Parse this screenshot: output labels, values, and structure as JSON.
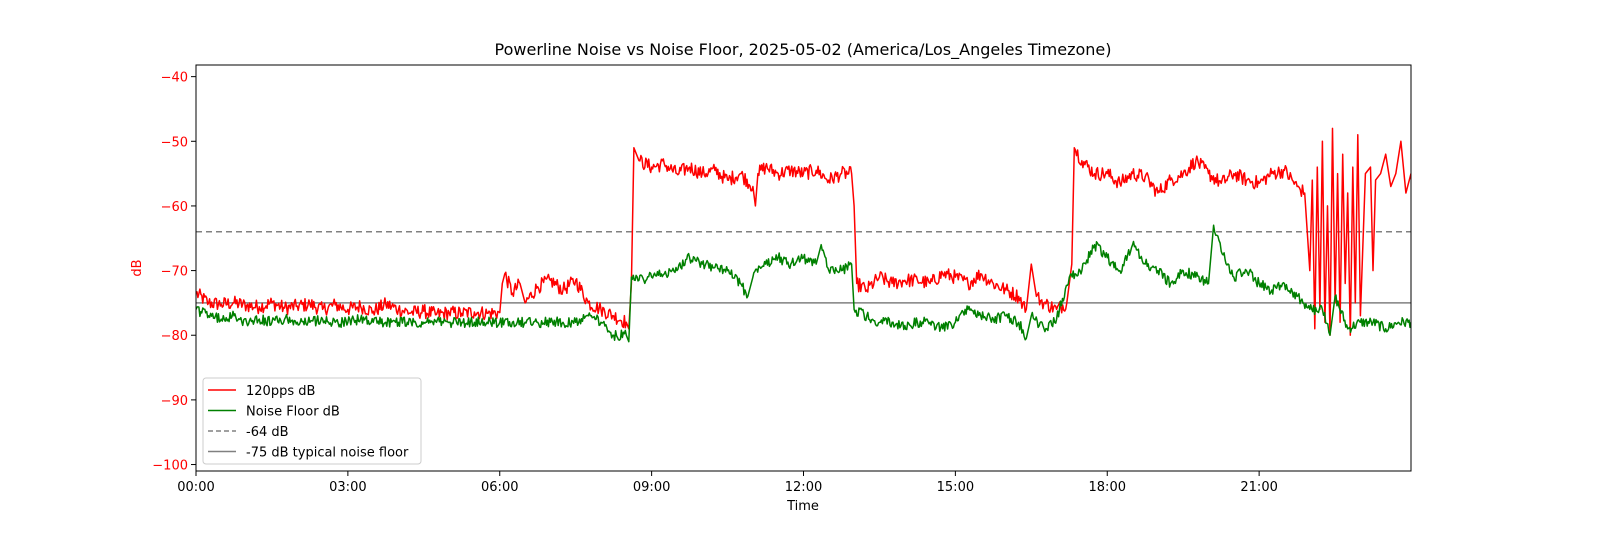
{
  "chart_data": {
    "type": "line",
    "title": "Powerline Noise vs Noise Floor, 2025-05-02 (America/Los_Angeles Timezone)",
    "xlabel": "Time",
    "ylabel": "dB",
    "x_unit": "hours of day",
    "xlim": [
      0,
      24
    ],
    "ylim": [
      -101,
      -38.2
    ],
    "x_ticks": [
      {
        "value": 0,
        "label": "00:00"
      },
      {
        "value": 3,
        "label": "03:00"
      },
      {
        "value": 6,
        "label": "06:00"
      },
      {
        "value": 9,
        "label": "09:00"
      },
      {
        "value": 12,
        "label": "12:00"
      },
      {
        "value": 15,
        "label": "15:00"
      },
      {
        "value": 18,
        "label": "18:00"
      },
      {
        "value": 21,
        "label": "21:00"
      }
    ],
    "y_ticks": [
      {
        "value": -40,
        "label": "−40"
      },
      {
        "value": -50,
        "label": "−50"
      },
      {
        "value": -60,
        "label": "−60"
      },
      {
        "value": -70,
        "label": "−70"
      },
      {
        "value": -80,
        "label": "−80"
      },
      {
        "value": -90,
        "label": "−90"
      },
      {
        "value": -100,
        "label": "−100"
      }
    ],
    "ylabel_color": "#ff0000",
    "grid": false,
    "legend_position": "lower-left",
    "series": [
      {
        "name": "120pps dB",
        "color": "#ff0000",
        "x": [
          0.0,
          0.25,
          0.5,
          0.75,
          1.0,
          1.25,
          1.5,
          1.75,
          2.0,
          2.25,
          2.5,
          2.75,
          3.0,
          3.25,
          3.5,
          3.75,
          4.0,
          4.25,
          4.5,
          4.75,
          5.0,
          5.25,
          5.5,
          5.75,
          6.0,
          6.05,
          6.1,
          6.25,
          6.4,
          6.5,
          6.75,
          7.0,
          7.25,
          7.5,
          7.75,
          8.0,
          8.25,
          8.5,
          8.55,
          8.6,
          8.65,
          8.75,
          9.0,
          9.25,
          9.5,
          9.75,
          10.0,
          10.25,
          10.5,
          10.75,
          11.0,
          11.05,
          11.1,
          11.25,
          11.5,
          11.75,
          12.0,
          12.25,
          12.5,
          12.75,
          12.95,
          13.0,
          13.05,
          13.25,
          13.5,
          13.75,
          14.0,
          14.25,
          14.5,
          14.75,
          15.0,
          15.25,
          15.5,
          15.75,
          16.0,
          16.25,
          16.4,
          16.5,
          16.6,
          16.75,
          17.0,
          17.2,
          17.3,
          17.35,
          17.5,
          17.75,
          18.0,
          18.25,
          18.5,
          18.75,
          19.0,
          19.25,
          19.5,
          19.75,
          20.0,
          20.25,
          20.5,
          20.75,
          21.0,
          21.25,
          21.5,
          21.75,
          21.9,
          22.0,
          22.05,
          22.1,
          22.15,
          22.2,
          22.25,
          22.3,
          22.35,
          22.4,
          22.45,
          22.5,
          22.55,
          22.6,
          22.65,
          22.7,
          22.75,
          22.8,
          22.85,
          22.9,
          22.95,
          23.0,
          23.1,
          23.2,
          23.25,
          23.3,
          23.4,
          23.5,
          23.6,
          23.7,
          23.8,
          23.9,
          24.0
        ],
        "y": [
          -73.5,
          -75.0,
          -75.2,
          -75.0,
          -75.4,
          -75.6,
          -75.0,
          -75.8,
          -75.5,
          -75.2,
          -76.0,
          -75.3,
          -76.0,
          -75.5,
          -76.3,
          -75.2,
          -76.0,
          -76.5,
          -76.3,
          -76.8,
          -76.5,
          -76.6,
          -76.4,
          -76.6,
          -76.5,
          -72.0,
          -70.5,
          -73.5,
          -72.0,
          -75.0,
          -72.5,
          -71.5,
          -73.0,
          -71.5,
          -75.0,
          -76.0,
          -77.0,
          -78.0,
          -79.0,
          -72.0,
          -51.0,
          -53.0,
          -54.0,
          -53.5,
          -55.0,
          -54.0,
          -55.0,
          -54.5,
          -56.0,
          -55.0,
          -57.0,
          -60.0,
          -55.0,
          -54.0,
          -55.0,
          -54.5,
          -55.0,
          -54.5,
          -56.0,
          -55.0,
          -55.0,
          -60.0,
          -72.0,
          -73.0,
          -71.0,
          -72.0,
          -71.5,
          -71.5,
          -72.0,
          -70.5,
          -71.0,
          -72.0,
          -70.5,
          -72.0,
          -73.0,
          -74.0,
          -76.0,
          -69.0,
          -74.0,
          -75.0,
          -76.0,
          -75.0,
          -69.0,
          -51.0,
          -53.0,
          -55.0,
          -55.0,
          -56.5,
          -55.0,
          -55.5,
          -58.0,
          -56.0,
          -55.0,
          -53.0,
          -55.0,
          -56.5,
          -55.0,
          -56.0,
          -56.5,
          -55.0,
          -54.5,
          -57.0,
          -58.0,
          -70.0,
          -56.0,
          -79.0,
          -54.0,
          -76.0,
          -50.0,
          -78.0,
          -60.0,
          -80.0,
          -48.0,
          -75.0,
          -55.0,
          -78.0,
          -52.0,
          -72.0,
          -58.0,
          -80.0,
          -54.0,
          -75.0,
          -49.0,
          -77.0,
          -55.0,
          -54.0,
          -70.0,
          -56.0,
          -55.0,
          -52.0,
          -57.0,
          -55.0,
          -50.0,
          -58.0,
          -55.0
        ]
      },
      {
        "name": "Noise Floor dB",
        "color": "#008000",
        "x": [
          0.0,
          0.25,
          0.5,
          0.75,
          1.0,
          1.25,
          1.5,
          1.75,
          2.0,
          2.25,
          2.5,
          2.75,
          3.0,
          3.25,
          3.5,
          3.75,
          4.0,
          4.25,
          4.5,
          4.75,
          5.0,
          5.25,
          5.5,
          5.75,
          6.0,
          6.25,
          6.5,
          6.75,
          7.0,
          7.25,
          7.5,
          7.75,
          8.0,
          8.25,
          8.5,
          8.55,
          8.6,
          8.75,
          9.0,
          9.25,
          9.5,
          9.75,
          10.0,
          10.25,
          10.5,
          10.75,
          10.9,
          11.0,
          11.25,
          11.5,
          11.75,
          12.0,
          12.25,
          12.35,
          12.5,
          12.75,
          12.95,
          13.0,
          13.25,
          13.5,
          13.75,
          14.0,
          14.25,
          14.5,
          14.75,
          15.0,
          15.25,
          15.5,
          15.75,
          16.0,
          16.25,
          16.4,
          16.5,
          16.75,
          17.0,
          17.25,
          17.5,
          17.75,
          18.0,
          18.25,
          18.5,
          18.75,
          19.0,
          19.25,
          19.5,
          19.75,
          20.0,
          20.1,
          20.25,
          20.5,
          20.75,
          21.0,
          21.25,
          21.5,
          21.75,
          22.0,
          22.25,
          22.4,
          22.5,
          22.75,
          23.0,
          23.25,
          23.5,
          23.75,
          24.0
        ],
        "y": [
          -76.0,
          -77.0,
          -77.5,
          -77.0,
          -78.0,
          -77.5,
          -78.0,
          -77.5,
          -78.0,
          -78.0,
          -77.5,
          -78.0,
          -78.0,
          -77.5,
          -78.0,
          -78.0,
          -78.0,
          -78.0,
          -78.0,
          -78.0,
          -78.0,
          -78.0,
          -78.0,
          -78.0,
          -78.0,
          -78.0,
          -78.0,
          -78.0,
          -78.0,
          -78.0,
          -78.0,
          -77.0,
          -78.0,
          -80.0,
          -80.0,
          -81.0,
          -71.0,
          -71.5,
          -71.0,
          -70.5,
          -70.0,
          -68.0,
          -69.0,
          -69.5,
          -70.0,
          -72.0,
          -74.0,
          -71.0,
          -69.0,
          -68.0,
          -69.0,
          -68.0,
          -69.0,
          -66.0,
          -70.0,
          -70.0,
          -69.0,
          -76.0,
          -77.0,
          -78.0,
          -78.0,
          -78.5,
          -78.0,
          -78.0,
          -79.0,
          -78.0,
          -76.0,
          -77.0,
          -77.5,
          -77.0,
          -78.0,
          -80.5,
          -77.0,
          -79.0,
          -77.5,
          -71.0,
          -70.0,
          -66.0,
          -68.0,
          -70.0,
          -66.0,
          -69.0,
          -70.0,
          -72.0,
          -70.0,
          -71.0,
          -72.0,
          -63.0,
          -67.0,
          -71.0,
          -70.0,
          -72.0,
          -73.0,
          -72.0,
          -74.0,
          -76.0,
          -76.0,
          -80.0,
          -74.0,
          -79.0,
          -78.0,
          -78.0,
          -79.0,
          -78.0,
          -78.0
        ]
      }
    ],
    "reference_lines": [
      {
        "name": "-64 dB",
        "y": -64,
        "color": "#808080",
        "style": "dashed"
      },
      {
        "name": "-75 dB typical noise floor",
        "y": -75,
        "color": "#808080",
        "style": "solid"
      }
    ]
  }
}
